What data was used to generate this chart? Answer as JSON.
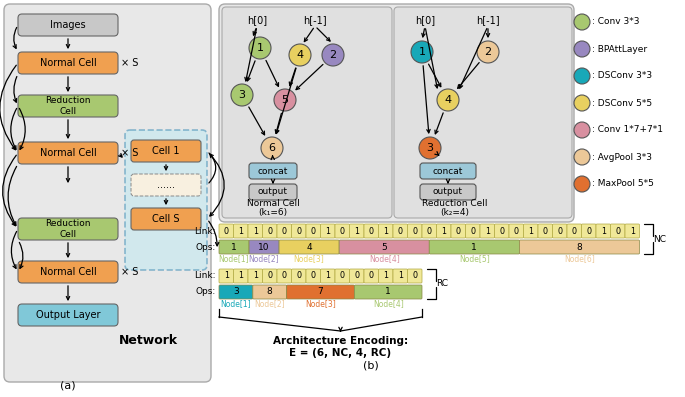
{
  "fig_width": 6.85,
  "fig_height": 3.97,
  "orange_cell": "#f0a050",
  "green_cell": "#a8c870",
  "blue_cell": "#80c8d8",
  "gray_img": "#c8c8c8",
  "light_blue_bg": "#c8e8f0",
  "panel_bg": "#e8e8e8",
  "legend_items": [
    [
      "Conv 3*3",
      "#a8c870"
    ],
    [
      "BPAttLayer",
      "#9888c0"
    ],
    [
      "DSConv 3*3",
      "#18a8b8"
    ],
    [
      "DSConv 5*5",
      "#e8d060"
    ],
    [
      "Conv 1*7+7*1",
      "#d890a0"
    ],
    [
      "AvgPool 3*3",
      "#ecc898"
    ],
    [
      "MaxPool 5*5",
      "#e07030"
    ]
  ],
  "nc_link": [
    0,
    1,
    1,
    0,
    0,
    0,
    0,
    1,
    0,
    1,
    0,
    1,
    0,
    0,
    0,
    1,
    0,
    0,
    1,
    0,
    0,
    1,
    0,
    0,
    0,
    0,
    1,
    0,
    1
  ],
  "nc_ops": [
    {
      "val": "1",
      "color": "#a8c870",
      "span": 1
    },
    {
      "val": "10",
      "color": "#9888c0",
      "span": 1
    },
    {
      "val": "4",
      "color": "#e8d060",
      "span": 2
    },
    {
      "val": "5",
      "color": "#d890a0",
      "span": 3
    },
    {
      "val": "1",
      "color": "#a8c870",
      "span": 3
    },
    {
      "val": "8",
      "color": "#ecc898",
      "span": 4
    }
  ],
  "nc_node_labels": [
    [
      "Node[1]",
      "#a8c870"
    ],
    [
      "Node[2]",
      "#9888c0"
    ],
    [
      "Node[3]",
      "#e8d060"
    ],
    [
      "Node[4]",
      "#d890a0"
    ],
    [
      "Node[5]",
      "#a8c870"
    ],
    [
      "Node[6]",
      "#ecc898"
    ]
  ],
  "rc_link": [
    1,
    1,
    1,
    0,
    0,
    0,
    0,
    1,
    0,
    0,
    0,
    1,
    1,
    0
  ],
  "rc_ops": [
    {
      "val": "3",
      "color": "#18a8b8",
      "span": 1
    },
    {
      "val": "8",
      "color": "#ecc898",
      "span": 1
    },
    {
      "val": "7",
      "color": "#e07030",
      "span": 2
    },
    {
      "val": "1",
      "color": "#a8c870",
      "span": 2
    }
  ],
  "rc_node_labels": [
    [
      "Node[1]",
      "#18a8b8"
    ],
    [
      "Node[2]",
      "#ecc898"
    ],
    [
      "Node[3]",
      "#e07030"
    ],
    [
      "Node[4]",
      "#a8c870"
    ]
  ]
}
